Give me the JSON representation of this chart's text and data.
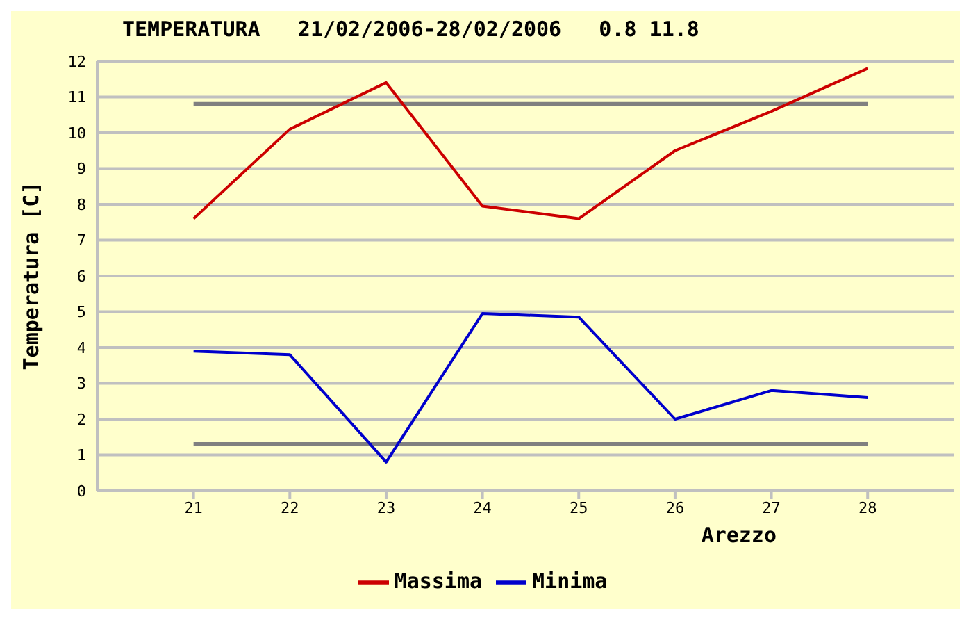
{
  "chart_data": {
    "type": "line",
    "title": "TEMPERATURA   21/02/2006-28/02/2006   0.8 11.8",
    "xlabel": "Arezzo",
    "ylabel": "Temperatura [C]",
    "x": [
      21,
      22,
      23,
      24,
      25,
      26,
      27,
      28
    ],
    "series": [
      {
        "name": "Massima",
        "color": "#cc0000",
        "values": [
          7.6,
          10.1,
          11.4,
          7.95,
          7.6,
          9.5,
          10.6,
          11.8
        ]
      },
      {
        "name": "Minima",
        "color": "#0000cc",
        "values": [
          3.9,
          3.8,
          0.8,
          4.95,
          4.85,
          2.0,
          2.8,
          2.6
        ]
      }
    ],
    "ref_lines": [
      {
        "axis": "y",
        "value": 10.8,
        "color": "#808080"
      },
      {
        "axis": "y",
        "value": 1.3,
        "color": "#808080"
      }
    ],
    "xlim": [
      20,
      28.9
    ],
    "xticks": [
      21,
      22,
      23,
      24,
      25,
      26,
      27,
      28
    ],
    "ylim": [
      0,
      12
    ],
    "yticks": [
      0,
      1,
      2,
      3,
      4,
      5,
      6,
      7,
      8,
      9,
      10,
      11,
      12
    ],
    "grid": "y",
    "legend": "bottom",
    "marker": "none",
    "line_style": "solid"
  }
}
